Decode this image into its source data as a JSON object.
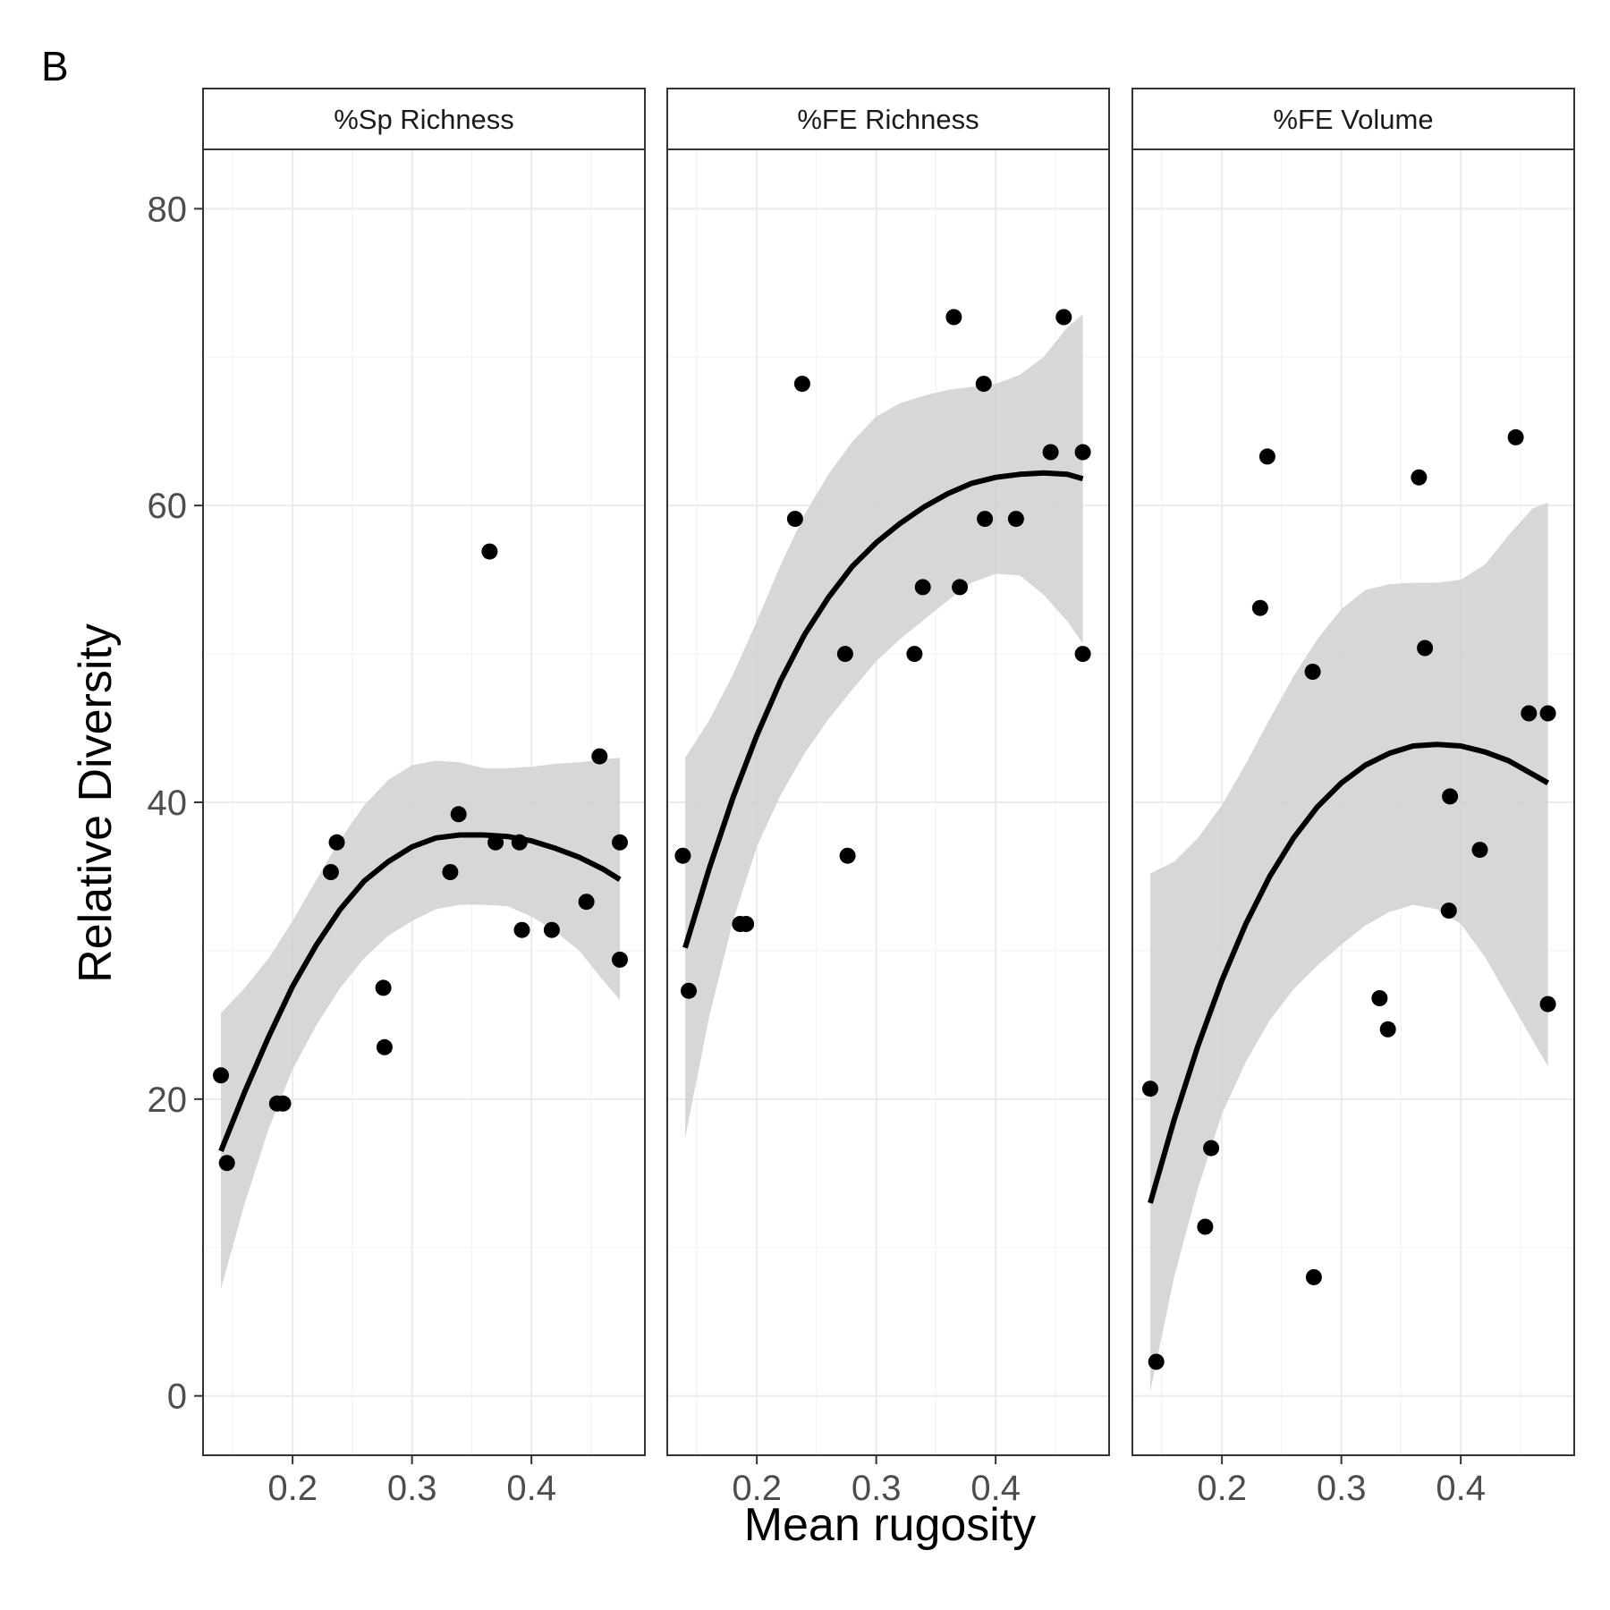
{
  "chart_data": {
    "type": "scatter",
    "panel_label": "B",
    "xlabel": "Mean rugosity",
    "ylabel": "Relative Diversity",
    "xlim": [
      0.125,
      0.495
    ],
    "ylim": [
      -4,
      84
    ],
    "x_ticks": [
      0.2,
      0.3,
      0.4
    ],
    "x_tick_labels": [
      "0.2",
      "0.3",
      "0.4"
    ],
    "y_ticks": [
      0,
      20,
      40,
      60,
      80
    ],
    "y_tick_labels": [
      "0",
      "20",
      "40",
      "60",
      "80"
    ],
    "grid": true,
    "legend": "none",
    "facets": [
      {
        "title": "%Sp Richness",
        "points": [
          {
            "x": 0.14,
            "y": 21.6
          },
          {
            "x": 0.145,
            "y": 15.7
          },
          {
            "x": 0.187,
            "y": 19.7
          },
          {
            "x": 0.192,
            "y": 19.7
          },
          {
            "x": 0.232,
            "y": 35.3
          },
          {
            "x": 0.237,
            "y": 37.3
          },
          {
            "x": 0.276,
            "y": 27.5
          },
          {
            "x": 0.277,
            "y": 23.5
          },
          {
            "x": 0.332,
            "y": 35.3
          },
          {
            "x": 0.339,
            "y": 39.2
          },
          {
            "x": 0.365,
            "y": 56.9
          },
          {
            "x": 0.37,
            "y": 37.3
          },
          {
            "x": 0.39,
            "y": 37.3
          },
          {
            "x": 0.392,
            "y": 31.4
          },
          {
            "x": 0.417,
            "y": 31.4
          },
          {
            "x": 0.446,
            "y": 33.3
          },
          {
            "x": 0.457,
            "y": 43.1
          },
          {
            "x": 0.474,
            "y": 37.3
          },
          {
            "x": 0.474,
            "y": 29.4
          }
        ],
        "fit": {
          "x": [
            0.14,
            0.16,
            0.18,
            0.2,
            0.22,
            0.24,
            0.26,
            0.28,
            0.3,
            0.32,
            0.34,
            0.36,
            0.38,
            0.4,
            0.42,
            0.44,
            0.46,
            0.474
          ],
          "y": [
            16.5,
            20.5,
            24.2,
            27.6,
            30.4,
            32.8,
            34.7,
            36.0,
            37.0,
            37.6,
            37.8,
            37.8,
            37.7,
            37.4,
            36.9,
            36.3,
            35.5,
            34.8
          ],
          "ci_lower": [
            7.2,
            13.0,
            18.0,
            22.0,
            25.0,
            27.5,
            29.5,
            31.0,
            32.0,
            32.8,
            33.1,
            33.1,
            33.0,
            32.3,
            31.3,
            30.0,
            28.0,
            26.7
          ],
          "ci_upper": [
            25.8,
            27.5,
            29.5,
            32.0,
            34.8,
            37.5,
            39.8,
            41.5,
            42.5,
            42.8,
            42.7,
            42.3,
            42.3,
            42.4,
            42.6,
            42.7,
            42.9,
            43.0
          ]
        }
      },
      {
        "title": "%FE Richness",
        "points": [
          {
            "x": 0.138,
            "y": 36.4
          },
          {
            "x": 0.143,
            "y": 27.3
          },
          {
            "x": 0.186,
            "y": 31.8
          },
          {
            "x": 0.191,
            "y": 31.8
          },
          {
            "x": 0.232,
            "y": 59.1
          },
          {
            "x": 0.238,
            "y": 68.2
          },
          {
            "x": 0.274,
            "y": 50.0
          },
          {
            "x": 0.276,
            "y": 36.4
          },
          {
            "x": 0.332,
            "y": 50.0
          },
          {
            "x": 0.339,
            "y": 54.5
          },
          {
            "x": 0.365,
            "y": 72.7
          },
          {
            "x": 0.37,
            "y": 54.5
          },
          {
            "x": 0.39,
            "y": 68.2
          },
          {
            "x": 0.391,
            "y": 59.1
          },
          {
            "x": 0.417,
            "y": 59.1
          },
          {
            "x": 0.446,
            "y": 63.6
          },
          {
            "x": 0.457,
            "y": 72.7
          },
          {
            "x": 0.473,
            "y": 63.6
          },
          {
            "x": 0.473,
            "y": 50.0
          }
        ],
        "fit": {
          "x": [
            0.14,
            0.16,
            0.18,
            0.2,
            0.22,
            0.24,
            0.26,
            0.28,
            0.3,
            0.32,
            0.34,
            0.36,
            0.38,
            0.4,
            0.42,
            0.44,
            0.46,
            0.473
          ],
          "y": [
            30.2,
            35.5,
            40.3,
            44.5,
            48.2,
            51.3,
            53.8,
            55.9,
            57.5,
            58.8,
            59.9,
            60.8,
            61.5,
            61.9,
            62.1,
            62.2,
            62.1,
            61.8
          ],
          "ci_lower": [
            17.4,
            25.5,
            32.0,
            37.0,
            40.5,
            43.3,
            45.6,
            47.6,
            49.5,
            51.0,
            52.3,
            53.6,
            54.8,
            55.4,
            55.3,
            54.0,
            52.2,
            50.7
          ],
          "ci_upper": [
            43.0,
            45.5,
            48.6,
            52.2,
            56.0,
            59.4,
            62.1,
            64.3,
            66.0,
            66.9,
            67.4,
            67.8,
            68.0,
            68.2,
            68.8,
            70.0,
            72.0,
            72.9
          ]
        }
      },
      {
        "title": "%FE Volume",
        "points": [
          {
            "x": 0.14,
            "y": 20.7
          },
          {
            "x": 0.145,
            "y": 2.3
          },
          {
            "x": 0.186,
            "y": 11.4
          },
          {
            "x": 0.191,
            "y": 16.7
          },
          {
            "x": 0.232,
            "y": 53.1
          },
          {
            "x": 0.238,
            "y": 63.3
          },
          {
            "x": 0.276,
            "y": 48.8
          },
          {
            "x": 0.277,
            "y": 8.0
          },
          {
            "x": 0.332,
            "y": 26.8
          },
          {
            "x": 0.339,
            "y": 24.7
          },
          {
            "x": 0.365,
            "y": 61.9
          },
          {
            "x": 0.37,
            "y": 50.4
          },
          {
            "x": 0.39,
            "y": 32.7
          },
          {
            "x": 0.391,
            "y": 40.4
          },
          {
            "x": 0.416,
            "y": 36.8
          },
          {
            "x": 0.446,
            "y": 64.6
          },
          {
            "x": 0.457,
            "y": 46.0
          },
          {
            "x": 0.473,
            "y": 46.0
          },
          {
            "x": 0.473,
            "y": 26.4
          }
        ],
        "fit": {
          "x": [
            0.14,
            0.16,
            0.18,
            0.2,
            0.22,
            0.24,
            0.26,
            0.28,
            0.3,
            0.32,
            0.34,
            0.36,
            0.38,
            0.4,
            0.42,
            0.44,
            0.46,
            0.473
          ],
          "y": [
            13.0,
            18.6,
            23.6,
            28.0,
            31.8,
            35.0,
            37.6,
            39.7,
            41.3,
            42.5,
            43.3,
            43.8,
            43.9,
            43.8,
            43.4,
            42.8,
            41.9,
            41.3
          ],
          "ci_lower": [
            0.3,
            8.0,
            14.0,
            19.0,
            22.5,
            25.3,
            27.4,
            29.0,
            30.4,
            31.7,
            32.6,
            33.1,
            32.8,
            31.8,
            29.6,
            26.8,
            24.0,
            22.2
          ],
          "ci_upper": [
            35.2,
            36.0,
            37.6,
            39.8,
            42.6,
            45.6,
            48.5,
            51.0,
            53.0,
            54.3,
            54.7,
            54.8,
            54.8,
            55.0,
            56.0,
            58.0,
            59.8,
            60.2
          ]
        }
      }
    ]
  },
  "colors": {
    "background": "#ffffff",
    "panel_border": "#333333",
    "strip_fill": "#ffffff",
    "grid_major": "#ebebeb",
    "grid_minor": "#f4f4f4",
    "point": "#000000",
    "fit_line": "#000000",
    "ci_band": "#d3d3d3",
    "tick": "#333333"
  }
}
